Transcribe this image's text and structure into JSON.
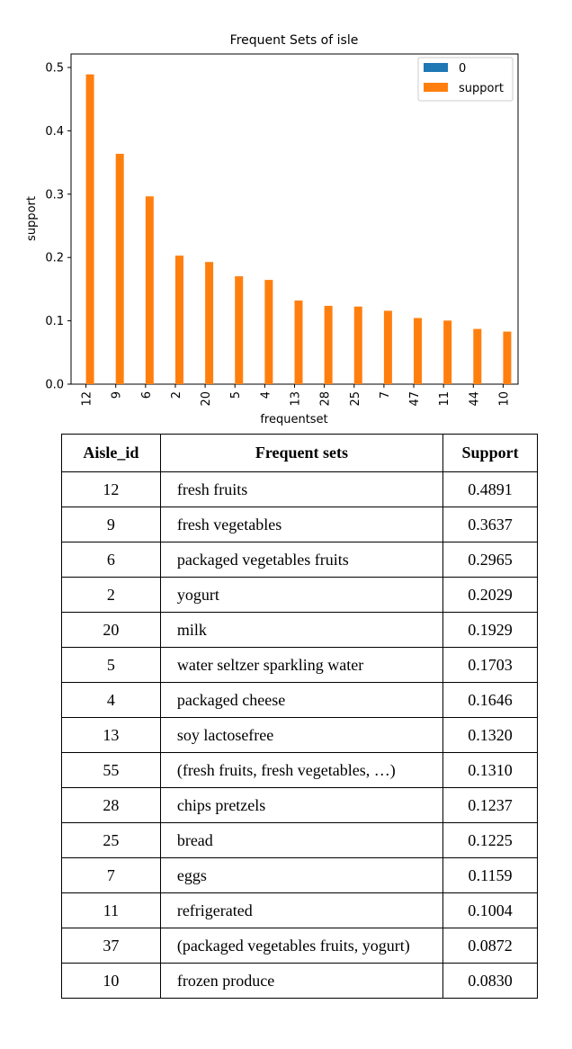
{
  "chart_data": {
    "type": "bar",
    "title": "Frequent Sets of isle",
    "xlabel": "frequentset",
    "ylabel": "support",
    "categories": [
      "12",
      "9",
      "6",
      "2",
      "20",
      "5",
      "4",
      "13",
      "28",
      "25",
      "7",
      "47",
      "11",
      "44",
      "10"
    ],
    "series": [
      {
        "name": "0",
        "color": "#1f77b4",
        "values": [
          0,
          0,
          0,
          0,
          0,
          0,
          0,
          0,
          0,
          0,
          0,
          0,
          0,
          0,
          0
        ]
      },
      {
        "name": "support",
        "color": "#ff7f0e",
        "values": [
          0.4891,
          0.3637,
          0.2965,
          0.2029,
          0.1929,
          0.1703,
          0.1646,
          0.132,
          0.1237,
          0.1225,
          0.1159,
          0.1044,
          0.1004,
          0.0872,
          0.083
        ]
      }
    ],
    "ylim": [
      0,
      0.5
    ],
    "yticks": [
      "0.0",
      "0.1",
      "0.2",
      "0.3",
      "0.4",
      "0.5"
    ],
    "legend_position": "top-right",
    "grid": false
  },
  "table": {
    "headers": [
      "Aisle_id",
      "Frequent sets",
      "Support"
    ],
    "rows": [
      [
        "12",
        "fresh fruits",
        "0.4891"
      ],
      [
        "9",
        "fresh vegetables",
        "0.3637"
      ],
      [
        "6",
        "packaged vegetables fruits",
        "0.2965"
      ],
      [
        "2",
        "yogurt",
        "0.2029"
      ],
      [
        "20",
        "milk",
        "0.1929"
      ],
      [
        "5",
        "water seltzer sparkling water",
        "0.1703"
      ],
      [
        "4",
        "packaged cheese",
        "0.1646"
      ],
      [
        "13",
        "soy lactosefree",
        "0.1320"
      ],
      [
        "55",
        "(fresh fruits, fresh vegetables, …)",
        "0.1310"
      ],
      [
        "28",
        "chips pretzels",
        "0.1237"
      ],
      [
        "25",
        "bread",
        "0.1225"
      ],
      [
        "7",
        "eggs",
        "0.1159"
      ],
      [
        "11",
        "refrigerated",
        "0.1004"
      ],
      [
        "37",
        "(packaged vegetables fruits, yogurt)",
        "0.0872"
      ],
      [
        "10",
        "frozen produce",
        "0.0830"
      ]
    ]
  }
}
